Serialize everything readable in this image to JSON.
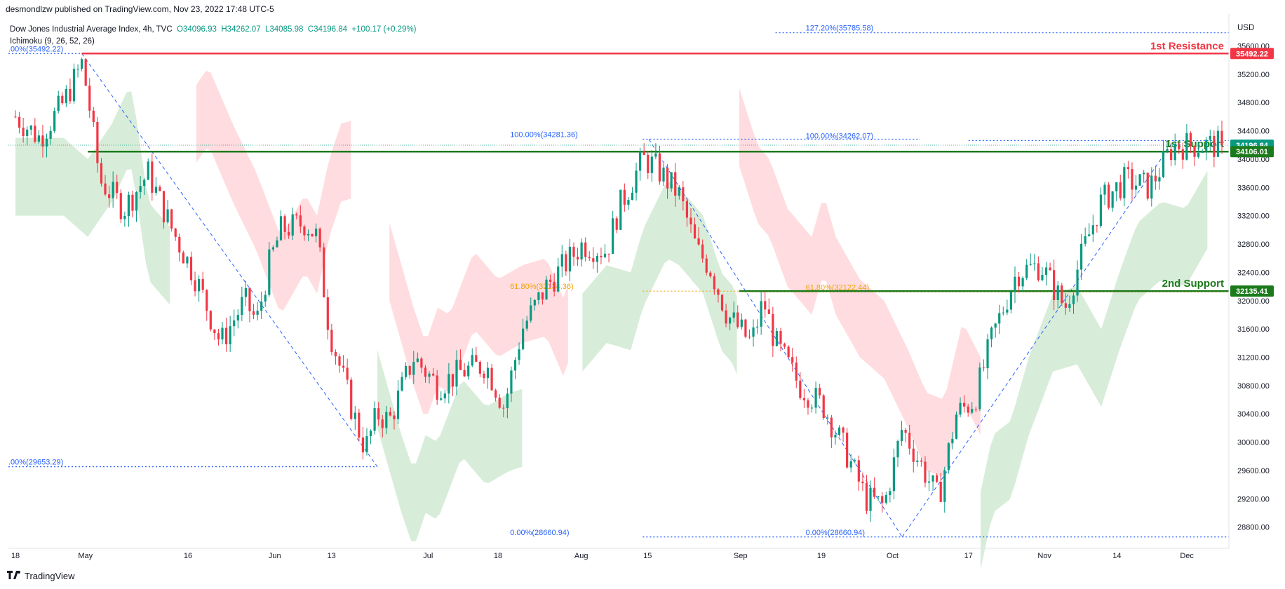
{
  "header": {
    "publish_line": "desmondlzw published on TradingView.com, Nov 23, 2022 17:48 UTC-5",
    "currency": "USD",
    "symbol_line": {
      "symbol": "Dow Jones Industrial Average Index, 4h, TVC",
      "open": "O34096.93",
      "high": "H34262.07",
      "low": "L34085.98",
      "close": "C34196.84",
      "change": "+100.17 (+0.29%)"
    },
    "indicator_line": "Ichimoku (9, 26, 52, 26)"
  },
  "footer": {
    "brand": "TradingView"
  },
  "colors": {
    "up_candle": "#089981",
    "down_candle": "#f23645",
    "resistance_line": "#f23645",
    "support_line": "#1b7a1b",
    "fib_line": "#2962ff",
    "fib_label": "#2962ff",
    "fib_618": "#f0a30a",
    "cloud_bull": "#c8e6c9",
    "cloud_bear": "#ffcdd2",
    "current_price_tag": "#089981"
  },
  "chart_data": {
    "type": "candlestick",
    "ylim": [
      28500,
      36050
    ],
    "y_ticks": [
      28800,
      29200,
      29600,
      30000,
      30400,
      30800,
      31200,
      31600,
      32000,
      32400,
      32800,
      33200,
      33600,
      34000,
      34400,
      34800,
      35200,
      35600
    ],
    "y_tick_labels": [
      "28800.00",
      "29200.00",
      "29600.00",
      "30000.00",
      "30400.00",
      "30800.00",
      "31200.00",
      "31600.00",
      "32000.00",
      "32400.00",
      "32800.00",
      "33200.00",
      "33600.00",
      "34000.00",
      "34400.00",
      "34800.00",
      "35200.00",
      "35600.00"
    ],
    "x_ticks": [
      {
        "label": "18",
        "t": 0
      },
      {
        "label": "May",
        "t": 0.058
      },
      {
        "label": "16",
        "t": 0.143
      },
      {
        "label": "Jun",
        "t": 0.215
      },
      {
        "label": "13",
        "t": 0.262
      },
      {
        "label": "Jul",
        "t": 0.342
      },
      {
        "label": "18",
        "t": 0.4
      },
      {
        "label": "Aug",
        "t": 0.469
      },
      {
        "label": "15",
        "t": 0.524
      },
      {
        "label": "Sep",
        "t": 0.601
      },
      {
        "label": "19",
        "t": 0.668
      },
      {
        "label": "Oct",
        "t": 0.727
      },
      {
        "label": "17",
        "t": 0.79
      },
      {
        "label": "Nov",
        "t": 0.853
      },
      {
        "label": "14",
        "t": 0.913
      },
      {
        "label": "Dec",
        "t": 0.971
      }
    ],
    "close_path": [
      [
        0,
        34600
      ],
      [
        0.02,
        34300
      ],
      [
        0.04,
        34800
      ],
      [
        0.055,
        35350
      ],
      [
        0.06,
        34900
      ],
      [
        0.07,
        33700
      ],
      [
        0.09,
        33300
      ],
      [
        0.11,
        33800
      ],
      [
        0.13,
        33000
      ],
      [
        0.15,
        32300
      ],
      [
        0.17,
        31400
      ],
      [
        0.19,
        32000
      ],
      [
        0.2,
        31700
      ],
      [
        0.21,
        32500
      ],
      [
        0.22,
        33000
      ],
      [
        0.24,
        33100
      ],
      [
        0.25,
        32900
      ],
      [
        0.26,
        31600
      ],
      [
        0.28,
        30400
      ],
      [
        0.29,
        29900
      ],
      [
        0.3,
        30400
      ],
      [
        0.31,
        30300
      ],
      [
        0.33,
        31200
      ],
      [
        0.35,
        30800
      ],
      [
        0.37,
        31000
      ],
      [
        0.39,
        31100
      ],
      [
        0.405,
        30500
      ],
      [
        0.42,
        31600
      ],
      [
        0.44,
        32200
      ],
      [
        0.47,
        32800
      ],
      [
        0.49,
        32700
      ],
      [
        0.5,
        33300
      ],
      [
        0.52,
        34000
      ],
      [
        0.53,
        33900
      ],
      [
        0.55,
        33500
      ],
      [
        0.565,
        32700
      ],
      [
        0.575,
        32500
      ],
      [
        0.59,
        31800
      ],
      [
        0.61,
        31400
      ],
      [
        0.62,
        32000
      ],
      [
        0.63,
        31400
      ],
      [
        0.65,
        30800
      ],
      [
        0.67,
        30500
      ],
      [
        0.69,
        29800
      ],
      [
        0.705,
        29200
      ],
      [
        0.72,
        29100
      ],
      [
        0.735,
        30200
      ],
      [
        0.75,
        29700
      ],
      [
        0.765,
        29200
      ],
      [
        0.78,
        30400
      ],
      [
        0.795,
        30600
      ],
      [
        0.81,
        31500
      ],
      [
        0.83,
        32400
      ],
      [
        0.85,
        32500
      ],
      [
        0.87,
        31900
      ],
      [
        0.885,
        32700
      ],
      [
        0.9,
        33400
      ],
      [
        0.92,
        33700
      ],
      [
        0.94,
        33600
      ],
      [
        0.96,
        34196.84
      ]
    ],
    "fib_levels": [
      {
        "label": "127.20%(35785.58)",
        "value": 35785.58
      },
      {
        "label": "100.00%(34262.07)",
        "value": 34262.07
      },
      {
        "label": "61.80%(32122.44)",
        "value": 32122.44
      },
      {
        "label": "0.00%(28660.94)",
        "value": 28660.94
      }
    ],
    "fib_levels_left": [
      {
        "label": ".00%(35492.22)",
        "value": 35492.22
      },
      {
        "label": ".00%(29653.29)",
        "value": 29653.29
      },
      {
        "label": "100.00%(34281.36)",
        "value": 34281.36
      },
      {
        "label": "61.80%(32134.36)",
        "value": 32134.36
      },
      {
        "label": "0.00%(28660.94)",
        "value": 28660.94
      }
    ],
    "levels": [
      {
        "name": "1st Resistance",
        "value": 35492.22,
        "tag": "35492.22"
      },
      {
        "name": "1st Support",
        "value": 34106.01,
        "tag": "34106.01"
      },
      {
        "name": "2nd Support",
        "value": 32135.41,
        "tag": "32135.41"
      }
    ],
    "last_price": {
      "value": 34196.84,
      "tag": "34196.84"
    }
  }
}
